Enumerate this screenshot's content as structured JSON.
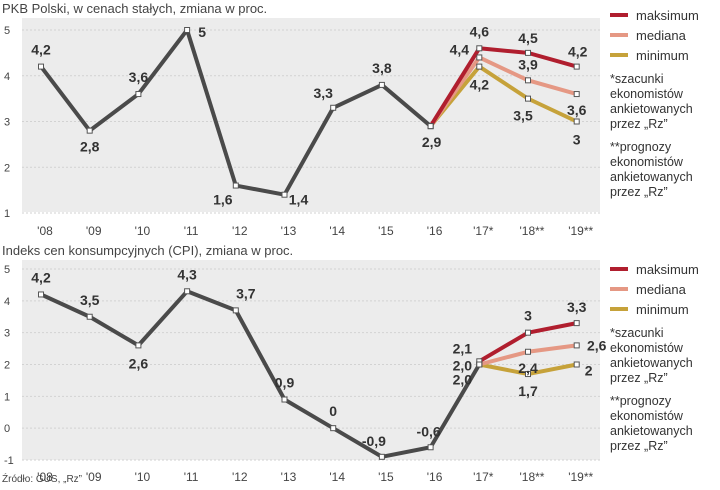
{
  "colors": {
    "actual": "#4a4a4a",
    "maksimum": "#b01e2e",
    "mediana": "#e59884",
    "minimum": "#c6a23a",
    "background": "#ececec",
    "grid": "#d2d2d2"
  },
  "legend": {
    "maksimum": "maksimum",
    "mediana": "mediana",
    "minimum": "minimum",
    "note1": "*szacunki ekonomistów ankietowanych przez „Rz”",
    "note2": "**prognozy ekonomistów ankietowanych przez „Rz”"
  },
  "source": "Źródło: GUS, „Rz”",
  "chart_data": [
    {
      "type": "line",
      "title": "PKB Polski, w cenach stałych, zmiana w proc.",
      "categories": [
        "'08",
        "'09",
        "'10",
        "'11",
        "'12",
        "'13",
        "'14",
        "'15",
        "'16",
        "'17*",
        "'18**",
        "'19**"
      ],
      "ylim": [
        1,
        5
      ],
      "yticks": [
        1,
        2,
        3,
        4,
        5
      ],
      "grid": true,
      "series": [
        {
          "name": "actual",
          "values": [
            4.2,
            2.8,
            3.6,
            5.0,
            1.6,
            1.4,
            3.3,
            3.8,
            2.9,
            null,
            null,
            null
          ],
          "labels": [
            "4,2",
            "2,8",
            "3,6",
            "5",
            "1,6",
            "1,4",
            "3,3",
            "3,8",
            "2,9",
            "",
            "",
            ""
          ]
        },
        {
          "name": "maksimum",
          "values": [
            null,
            null,
            null,
            null,
            null,
            null,
            null,
            null,
            2.9,
            4.6,
            4.5,
            4.2
          ],
          "labels": [
            "",
            "",
            "",
            "",
            "",
            "",
            "",
            "",
            "",
            "4,6",
            "4,5",
            "4,2"
          ]
        },
        {
          "name": "mediana",
          "values": [
            null,
            null,
            null,
            null,
            null,
            null,
            null,
            null,
            2.9,
            4.4,
            3.9,
            3.6
          ],
          "labels": [
            "",
            "",
            "",
            "",
            "",
            "",
            "",
            "",
            "",
            "4,4",
            "3,9",
            "3,6"
          ]
        },
        {
          "name": "minimum",
          "values": [
            null,
            null,
            null,
            null,
            null,
            null,
            null,
            null,
            2.9,
            4.2,
            3.5,
            3.0
          ],
          "labels": [
            "",
            "",
            "",
            "",
            "",
            "",
            "",
            "",
            "",
            "4,2",
            "3,5",
            "3"
          ]
        }
      ]
    },
    {
      "type": "line",
      "title": "Indeks cen konsumpcyjnych (CPI), zmiana w proc.",
      "categories": [
        "'08",
        "'09",
        "'10",
        "'11",
        "'12",
        "'13",
        "'14",
        "'15",
        "'16",
        "'17*",
        "'18**",
        "'19**"
      ],
      "ylim": [
        -1,
        5
      ],
      "yticks": [
        -1,
        0,
        1,
        2,
        3,
        4,
        5
      ],
      "grid": true,
      "series": [
        {
          "name": "actual",
          "values": [
            4.2,
            3.5,
            2.6,
            4.3,
            3.7,
            0.9,
            0.0,
            -0.9,
            -0.6,
            2.0,
            null,
            null
          ],
          "labels": [
            "4,2",
            "3,5",
            "2,6",
            "4,3",
            "3,7",
            "0,9",
            "0",
            "-0,9",
            "-0,6",
            "2,0",
            "",
            ""
          ]
        },
        {
          "name": "maksimum",
          "values": [
            null,
            null,
            null,
            null,
            null,
            null,
            null,
            null,
            null,
            2.1,
            3.0,
            3.3
          ],
          "labels": [
            "",
            "",
            "",
            "",
            "",
            "",
            "",
            "",
            "",
            "2,1",
            "3",
            "3,3"
          ]
        },
        {
          "name": "mediana",
          "values": [
            null,
            null,
            null,
            null,
            null,
            null,
            null,
            null,
            null,
            2.0,
            2.4,
            2.6
          ],
          "labels": [
            "",
            "",
            "",
            "",
            "",
            "",
            "",
            "",
            "",
            "2,0",
            "2,4",
            "2,6"
          ]
        },
        {
          "name": "minimum",
          "values": [
            null,
            null,
            null,
            null,
            null,
            null,
            null,
            null,
            null,
            2.0,
            1.7,
            2.0
          ],
          "labels": [
            "",
            "",
            "",
            "",
            "",
            "",
            "",
            "",
            "",
            "",
            "1,7",
            "2"
          ]
        }
      ]
    }
  ]
}
